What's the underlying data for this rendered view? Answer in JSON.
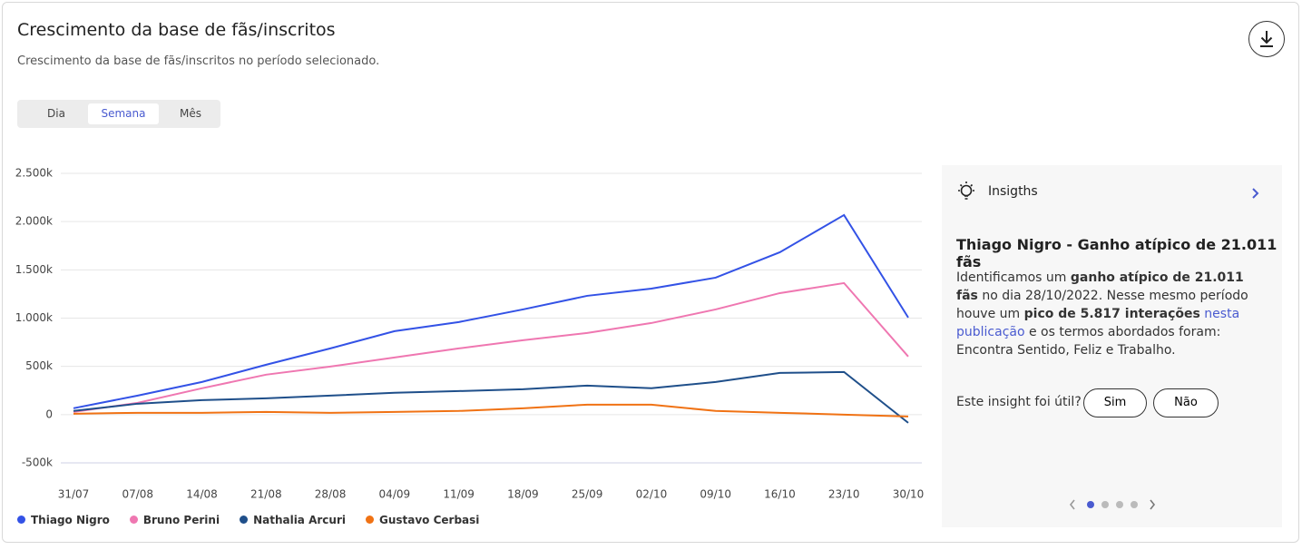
{
  "header": {
    "title": "Crescimento da base de fãs/inscritos",
    "subtitle": "Crescimento da base de fãs/inscritos no período selecionado."
  },
  "tabs": [
    "Dia",
    "Semana",
    "Mês"
  ],
  "active_tab": 1,
  "chart_data": {
    "type": "line",
    "categories": [
      "31/07",
      "07/08",
      "14/08",
      "21/08",
      "28/08",
      "04/09",
      "11/09",
      "18/09",
      "25/09",
      "02/10",
      "09/10",
      "16/10",
      "23/10",
      "30/10"
    ],
    "ylim": [
      -500,
      2500
    ],
    "yticks": [
      {
        "value": -500,
        "label": "-500k"
      },
      0,
      {
        "value": 500,
        "label": "500k"
      },
      {
        "value": 1000,
        "label": "1.000k"
      },
      {
        "value": 1500,
        "label": "1.500k"
      },
      {
        "value": 2000,
        "label": "2.000k"
      },
      {
        "value": 2500,
        "label": "2.500k"
      }
    ],
    "grid": true,
    "series": [
      {
        "name": "Thiago Nigro",
        "color": "#3352e6",
        "values": [
          66,
          197,
          338,
          517,
          686,
          865,
          959,
          1090,
          1231,
          1306,
          1419,
          1682,
          2068,
          1006
        ]
      },
      {
        "name": "Bruno Perini",
        "color": "#ef77b1",
        "values": [
          28,
          122,
          273,
          414,
          498,
          592,
          686,
          771,
          846,
          949,
          1090,
          1259,
          1363,
          602
        ]
      },
      {
        "name": "Nathalia Arcuri",
        "color": "#1f4f8a",
        "values": [
          38,
          113,
          150,
          169,
          197,
          226,
          244,
          263,
          301,
          273,
          338,
          432,
          442,
          -85
        ]
      },
      {
        "name": "Gustavo Cerbasi",
        "color": "#f07214",
        "values": [
          9,
          19,
          19,
          28,
          19,
          28,
          38,
          66,
          103,
          103,
          38,
          19,
          0,
          -19
        ]
      }
    ]
  },
  "insight": {
    "heading": "Insigths",
    "title": "Thiago Nigro - Ganho atípico de 21.011 fãs",
    "parts": [
      {
        "text": "Identificamos um "
      },
      {
        "text": "ganho atípico de 21.011 fãs",
        "bold": true
      },
      {
        "text": " no dia 28/10/2022. Nesse mesmo período houve um "
      },
      {
        "text": "pico de 5.817 interações",
        "bold": true
      },
      {
        "text": " "
      },
      {
        "text": "nesta publicação",
        "link": true
      },
      {
        "text": " e os termos abordados foram: Encontra Sentido, Feliz e Trabalho."
      }
    ],
    "question": "Este insight foi útil?",
    "yes": "Sim",
    "no": "Não"
  }
}
